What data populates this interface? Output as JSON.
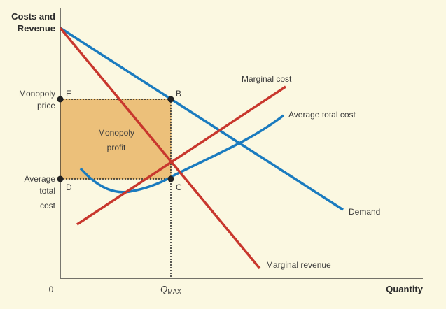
{
  "axes": {
    "y_title_line1": "Costs and",
    "y_title_line2": "Revenue",
    "x_title": "Quantity",
    "origin": "0"
  },
  "y_labels": {
    "price_line1": "Monopoly",
    "price_line2": "price",
    "atc_line1": "Average",
    "atc_line2": "total",
    "atc_line3": "cost"
  },
  "x_labels": {
    "q_main": "Q",
    "q_sub": "MAX"
  },
  "region": {
    "line1": "Monopoly",
    "line2": "profit"
  },
  "points": {
    "E": "E",
    "B": "B",
    "D": "D",
    "C": "C"
  },
  "curves": {
    "marginal_cost": "Marginal cost",
    "average_total_cost": "Average total cost",
    "demand": "Demand",
    "marginal_revenue": "Marginal revenue"
  },
  "colors": {
    "background": "#fbf8e1",
    "demand": "#1a7bbf",
    "average_total_cost": "#1a7bbf",
    "marginal_cost": "#c8372d",
    "marginal_revenue": "#c8372d",
    "profit_fill": "#ecc07a",
    "axis": "#222222"
  }
}
